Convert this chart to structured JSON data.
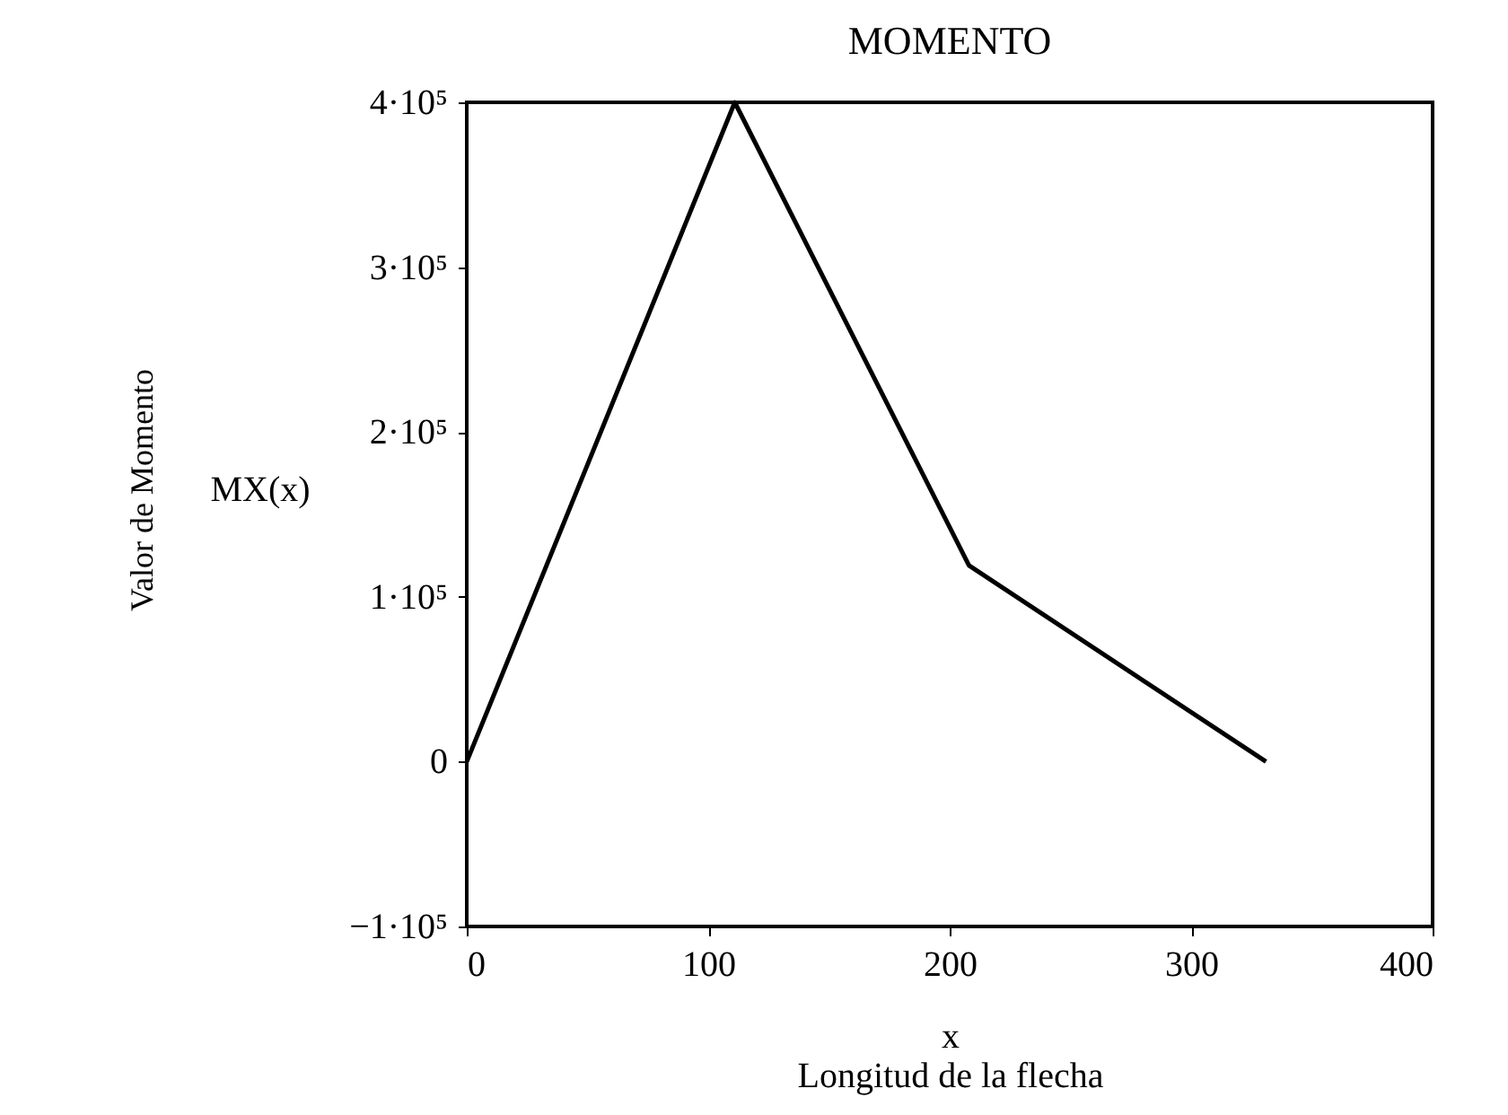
{
  "chart_data": {
    "type": "line",
    "title": "MOMENTO",
    "xlabel": "x\nLongitud de la flecha",
    "annotations": [
      "Valor de Momento",
      "MX(x)"
    ],
    "x": [
      0,
      111,
      208,
      331
    ],
    "series": [
      {
        "color": "#000000",
        "values": [
          0,
          400000,
          119000,
          0
        ]
      }
    ],
    "xlim": [
      0,
      400
    ],
    "xticks": [
      0,
      100,
      200,
      300,
      400
    ],
    "ylim": [
      -100000,
      400000
    ],
    "yticks": [
      {
        "value": -100000,
        "label": "−1·10⁵"
      },
      0,
      {
        "value": 100000,
        "label": "1·10⁵"
      },
      {
        "value": 200000,
        "label": "2·10⁵"
      },
      {
        "value": 300000,
        "label": "3·10⁵"
      },
      {
        "value": 400000,
        "label": "4·10⁵"
      }
    ],
    "grid": false,
    "marker": "none",
    "line_style": "solid"
  }
}
